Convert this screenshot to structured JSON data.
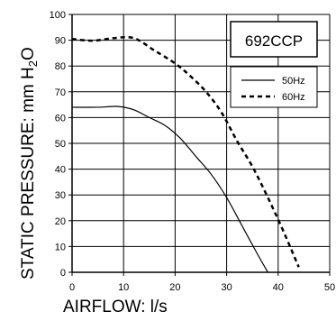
{
  "chart_data": {
    "type": "line",
    "model_label": "692CCP",
    "xlabel": "AIRFLOW: l/s",
    "ylabel_main": "STATIC PRESSURE: mm H",
    "ylabel_sub": "2",
    "ylabel_tail": "O",
    "xlim": [
      0,
      50
    ],
    "ylim": [
      0,
      100
    ],
    "x_ticks": [
      "0",
      "10",
      "20",
      "30",
      "40",
      "50"
    ],
    "y_ticks": [
      "0",
      "10",
      "20",
      "30",
      "40",
      "50",
      "60",
      "70",
      "80",
      "90",
      "100"
    ],
    "grid": true,
    "legend_position": "top-right",
    "series": [
      {
        "name": "50Hz",
        "style": "solid",
        "x": [
          0,
          5,
          9,
          12,
          15,
          18,
          21,
          24,
          27,
          30,
          33,
          36,
          38
        ],
        "y": [
          64,
          64,
          64.3,
          63,
          60,
          57,
          52,
          45,
          38,
          29,
          18,
          7,
          0
        ]
      },
      {
        "name": "60Hz",
        "style": "dashed",
        "x": [
          0,
          4,
          8,
          12,
          16,
          20,
          23,
          26,
          29,
          32,
          35,
          38,
          41,
          44
        ],
        "y": [
          90.5,
          89.8,
          90.8,
          90.8,
          86,
          81,
          76,
          70,
          62,
          51,
          41,
          29,
          16,
          2
        ]
      }
    ]
  }
}
